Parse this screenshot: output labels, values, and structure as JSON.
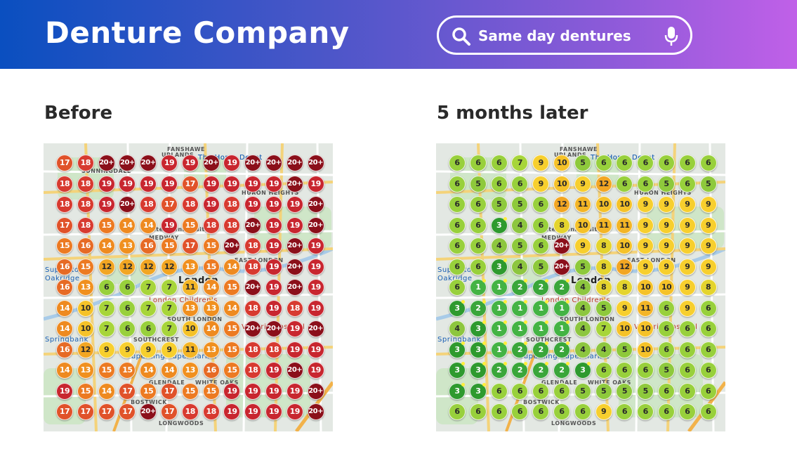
{
  "header": {
    "brand": "Denture Company",
    "search_text": "Same day dentures",
    "search_icon": "search-icon",
    "mic_icon": "microphone-icon"
  },
  "colors": {
    "20+": "#8b0f1a",
    "19": "#c8262f",
    "18": "#d73a30",
    "17": "#e0522a",
    "16": "#e66a25",
    "15": "#ec7a22",
    "14": "#ee8a20",
    "13": "#f0901f",
    "12": "#f2a623",
    "11": "#f3b526",
    "10": "#f5c229",
    "9": "#f7cf2e",
    "8": "#e4d42e",
    "7": "#a7d53a",
    "6": "#98d03c",
    "5": "#8ec93c",
    "4": "#8dc63f",
    "3": "#2e9a2e",
    "2": "#3aa63a",
    "1": "#44b344"
  },
  "panels": [
    {
      "title": "Before",
      "map_labels": [
        "FANSHAWE",
        "UPLANDS",
        "SUNNINGDALE",
        "HURON HEIGHTS",
        "MEDWAY",
        "Western University",
        "EAST LONDON",
        "London",
        "London Children's",
        "SOUTH LONDON",
        "SOUTHCREST",
        "GLENDALE",
        "WHITE OAKS",
        "BOSTWICK",
        "LONGWOODS",
        "The Home Depot",
        "Superstore",
        "Oakridge",
        "Springbank",
        "The Home Depot",
        "Victoria Hospital",
        "Superking Supermarket"
      ],
      "grid": [
        [
          "17",
          "18",
          "20+",
          "20+",
          "20+",
          "19",
          "19",
          "20+",
          "19",
          "20+",
          "20+",
          "20+",
          "20+"
        ],
        [
          "18",
          "18",
          "19",
          "19",
          "19",
          "19",
          "17",
          "19",
          "19",
          "19",
          "19",
          "20+",
          "19"
        ],
        [
          "18",
          "18",
          "19",
          "20+",
          "18",
          "17",
          "18",
          "19",
          "18",
          "19",
          "19",
          "19",
          "20+"
        ],
        [
          "17",
          "18",
          "15",
          "14",
          "14",
          "19",
          "15",
          "18",
          "18",
          "20+",
          "19",
          "19",
          "20+"
        ],
        [
          "15",
          "16",
          "14",
          "13",
          "16",
          "15",
          "17",
          "15",
          "20+",
          "18",
          "19",
          "20+",
          "19"
        ],
        [
          "16",
          "15",
          "12",
          "12",
          "12",
          "12",
          "13",
          "15",
          "14",
          "18",
          "19",
          "20+",
          "19"
        ],
        [
          "16",
          "13",
          "6",
          "6",
          "7",
          "7",
          "11",
          "14",
          "15",
          "20+",
          "19",
          "20+",
          "19"
        ],
        [
          "14",
          "10",
          "7",
          "6",
          "7",
          "7",
          "13",
          "13",
          "14",
          "18",
          "19",
          "18",
          "19"
        ],
        [
          "14",
          "10",
          "7",
          "6",
          "6",
          "7",
          "10",
          "14",
          "15",
          "20+",
          "20+",
          "19",
          "20+"
        ],
        [
          "16",
          "12",
          "9",
          "9",
          "9",
          "9",
          "11",
          "13",
          "15",
          "18",
          "18",
          "19",
          "19"
        ],
        [
          "14",
          "13",
          "15",
          "15",
          "14",
          "14",
          "13",
          "16",
          "15",
          "18",
          "19",
          "20+",
          "19"
        ],
        [
          "19",
          "15",
          "14",
          "17",
          "15",
          "17",
          "15",
          "15",
          "19",
          "19",
          "19",
          "19",
          "20+"
        ],
        [
          "17",
          "17",
          "17",
          "17",
          "20+",
          "17",
          "18",
          "18",
          "19",
          "19",
          "19",
          "19",
          "20+"
        ]
      ]
    },
    {
      "title": "5 months later",
      "map_labels": [
        "FANSHAWE",
        "UPLANDS",
        "HURON HEIGHTS",
        "MEDWAY",
        "Western University",
        "EAST LONDON",
        "London",
        "London Children's",
        "SOUTH LONDON",
        "SOUTHCREST",
        "GLENDALE",
        "WHITE OAKS",
        "BOSTWICK",
        "LONGWOODS",
        "The Home Depot",
        "Superstore",
        "Oakridge",
        "Springbank",
        "The Home Depot",
        "Victoria Hospital",
        "Superking Supermarket"
      ],
      "grid": [
        [
          "6",
          "6",
          "6",
          "7",
          "9",
          "10",
          "5",
          "6",
          "6",
          "6",
          "6",
          "6",
          "6"
        ],
        [
          "6",
          "5",
          "6",
          "6",
          "9",
          "10",
          "9",
          "12",
          "6",
          "6",
          "5",
          "6",
          "5"
        ],
        [
          "6",
          "6",
          "5",
          "5",
          "6",
          "12",
          "11",
          "10",
          "10",
          "9",
          "9",
          "9",
          "9"
        ],
        [
          "6",
          "6",
          "3",
          "4",
          "6",
          "8",
          "10",
          "11",
          "11",
          "9",
          "9",
          "9",
          "9"
        ],
        [
          "6",
          "6",
          "4",
          "5",
          "6",
          "20+",
          "9",
          "8",
          "10",
          "9",
          "9",
          "9",
          "9"
        ],
        [
          "6",
          "6",
          "3",
          "4",
          "5",
          "20+",
          "5",
          "8",
          "12",
          "9",
          "9",
          "9",
          "9"
        ],
        [
          "6",
          "1",
          "1",
          "2",
          "2",
          "2",
          "4",
          "8",
          "8",
          "10",
          "10",
          "9",
          "8"
        ],
        [
          "3",
          "2",
          "1",
          "1",
          "1",
          "1",
          "4",
          "5",
          "9",
          "11",
          "6",
          "9",
          "6"
        ],
        [
          "4",
          "3",
          "1",
          "1",
          "1",
          "1",
          "4",
          "7",
          "10",
          "10",
          "6",
          "6",
          "6"
        ],
        [
          "3",
          "3",
          "1",
          "2",
          "2",
          "2",
          "4",
          "4",
          "5",
          "10",
          "6",
          "6",
          "6"
        ],
        [
          "3",
          "3",
          "2",
          "2",
          "2",
          "2",
          "3",
          "6",
          "6",
          "6",
          "5",
          "6",
          "6"
        ],
        [
          "3",
          "3",
          "6",
          "6",
          "6",
          "6",
          "5",
          "5",
          "5",
          "5",
          "6",
          "6",
          "6"
        ],
        [
          "6",
          "6",
          "6",
          "6",
          "6",
          "6",
          "6",
          "9",
          "6",
          "6",
          "6",
          "6",
          "6"
        ]
      ]
    }
  ]
}
